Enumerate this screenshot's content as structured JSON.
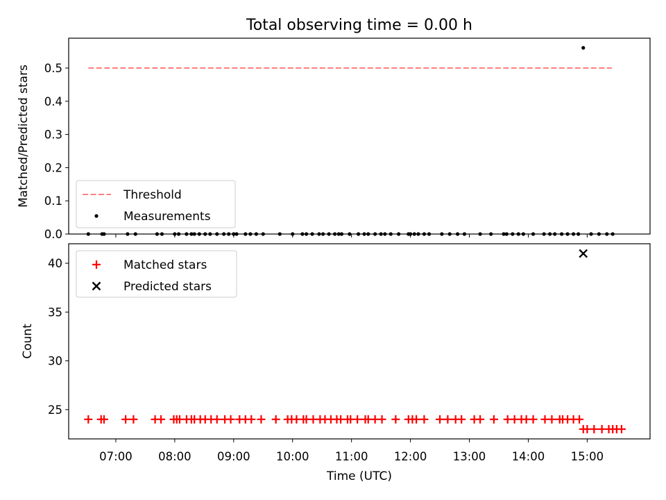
{
  "figure": {
    "title": "Total observing time = 0.00 h"
  },
  "chart_data": [
    {
      "type": "scatter",
      "ylabel": "Matched/Predicted stars",
      "ylim": [
        0,
        0.59
      ],
      "yticks": [
        0.0,
        0.1,
        0.2,
        0.3,
        0.4,
        0.5
      ],
      "ytick_labels": [
        "0.0",
        "0.1",
        "0.2",
        "0.3",
        "0.4",
        "0.5"
      ],
      "xlim": [
        "06:12",
        "16:04"
      ],
      "legend": {
        "placement": "lower-left",
        "entries": [
          "Threshold",
          "Measurements"
        ]
      },
      "threshold": {
        "name": "Threshold",
        "value": 0.5,
        "x_start": "06:32",
        "x_end": "15:25",
        "style": "dashed",
        "color": "#ff7f7f"
      },
      "series": [
        {
          "name": "Measurements",
          "marker": "dot",
          "color": "#000000",
          "x": [
            "06:32",
            "06:46",
            "06:48",
            "07:12",
            "07:20",
            "07:42",
            "07:47",
            "08:00",
            "08:04",
            "08:12",
            "08:17",
            "08:20",
            "08:25",
            "08:31",
            "08:36",
            "08:43",
            "08:50",
            "08:55",
            "09:00",
            "09:03",
            "09:12",
            "09:17",
            "09:23",
            "09:30",
            "09:47",
            "10:00",
            "10:10",
            "10:14",
            "10:20",
            "10:27",
            "10:31",
            "10:37",
            "10:43",
            "10:47",
            "10:50",
            "10:58",
            "11:07",
            "11:13",
            "11:17",
            "11:24",
            "11:30",
            "11:34",
            "11:40",
            "11:48",
            "11:58",
            "12:00",
            "12:04",
            "12:08",
            "12:14",
            "12:19",
            "12:32",
            "12:40",
            "12:48",
            "12:55",
            "13:11",
            "13:22",
            "13:35",
            "13:38",
            "13:44",
            "13:50",
            "13:55",
            "14:05",
            "14:16",
            "14:22",
            "14:27",
            "14:34",
            "14:40",
            "14:46",
            "14:51",
            "15:04",
            "15:12",
            "15:20",
            "15:26"
          ],
          "y": [
            0,
            0,
            0,
            0,
            0,
            0,
            0,
            0,
            0,
            0,
            0,
            0,
            0,
            0,
            0,
            0,
            0,
            0,
            0,
            0,
            0,
            0,
            0,
            0,
            0,
            0,
            0,
            0,
            0,
            0,
            0,
            0,
            0,
            0,
            0,
            0,
            0,
            0,
            0,
            0,
            0,
            0,
            0,
            0,
            0,
            0,
            0,
            0,
            0,
            0,
            0,
            0,
            0,
            0,
            0,
            0,
            0,
            0,
            0,
            0,
            0,
            0,
            0,
            0,
            0,
            0,
            0,
            0,
            0,
            0,
            0,
            0,
            0
          ]
        },
        {
          "name": "Measurements (outlier)",
          "marker": "dot",
          "color": "#000000",
          "x": [
            "14:56"
          ],
          "y": [
            0.561
          ]
        }
      ]
    },
    {
      "type": "scatter",
      "xlabel": "Time (UTC)",
      "ylabel": "Count",
      "ylim": [
        22,
        42
      ],
      "yticks": [
        25,
        30,
        35,
        40
      ],
      "ytick_labels": [
        "25",
        "30",
        "35",
        "40"
      ],
      "xlim": [
        "06:12",
        "16:04"
      ],
      "xticks": [
        "07:00",
        "08:00",
        "09:00",
        "10:00",
        "11:00",
        "12:00",
        "13:00",
        "14:00",
        "15:00"
      ],
      "xtick_labels": [
        "07:00",
        "08:00",
        "09:00",
        "10:00",
        "11:00",
        "12:00",
        "13:00",
        "14:00",
        "15:00"
      ],
      "legend": {
        "placement": "top-left",
        "entries": [
          "Matched stars",
          "Predicted stars"
        ]
      },
      "series": [
        {
          "name": "Matched stars",
          "marker": "plus",
          "color": "#ff0000",
          "x": [
            "06:32",
            "06:45",
            "06:48",
            "07:10",
            "07:18",
            "07:40",
            "07:46",
            "07:59",
            "08:02",
            "08:05",
            "08:12",
            "08:17",
            "08:20",
            "08:26",
            "08:31",
            "08:37",
            "08:43",
            "08:51",
            "08:57",
            "09:06",
            "09:12",
            "09:18",
            "09:28",
            "09:43",
            "09:55",
            "09:59",
            "10:04",
            "10:11",
            "10:14",
            "10:21",
            "10:28",
            "10:33",
            "10:39",
            "10:45",
            "10:49",
            "10:56",
            "10:59",
            "11:06",
            "11:14",
            "11:17",
            "11:24",
            "11:31",
            "11:45",
            "11:58",
            "12:02",
            "12:06",
            "12:14",
            "12:30",
            "12:38",
            "12:46",
            "12:52",
            "13:05",
            "13:11",
            "13:25",
            "13:39",
            "13:46",
            "13:53",
            "13:58",
            "14:05",
            "14:17",
            "14:24",
            "14:32",
            "14:35",
            "14:40",
            "14:46",
            "14:52",
            "14:56",
            "15:00",
            "15:07",
            "15:15",
            "15:22",
            "15:26",
            "15:30",
            "15:35"
          ],
          "y": [
            24,
            24,
            24,
            24,
            24,
            24,
            24,
            24,
            24,
            24,
            24,
            24,
            24,
            24,
            24,
            24,
            24,
            24,
            24,
            24,
            24,
            24,
            24,
            24,
            24,
            24,
            24,
            24,
            24,
            24,
            24,
            24,
            24,
            24,
            24,
            24,
            24,
            24,
            24,
            24,
            24,
            24,
            24,
            24,
            24,
            24,
            24,
            24,
            24,
            24,
            24,
            24,
            24,
            24,
            24,
            24,
            24,
            24,
            24,
            24,
            24,
            24,
            24,
            24,
            24,
            24,
            23,
            23,
            23,
            23,
            23,
            23,
            23,
            23
          ]
        },
        {
          "name": "Predicted stars",
          "marker": "x",
          "color": "#000000",
          "x": [
            "14:56"
          ],
          "y": [
            41
          ]
        }
      ]
    }
  ]
}
